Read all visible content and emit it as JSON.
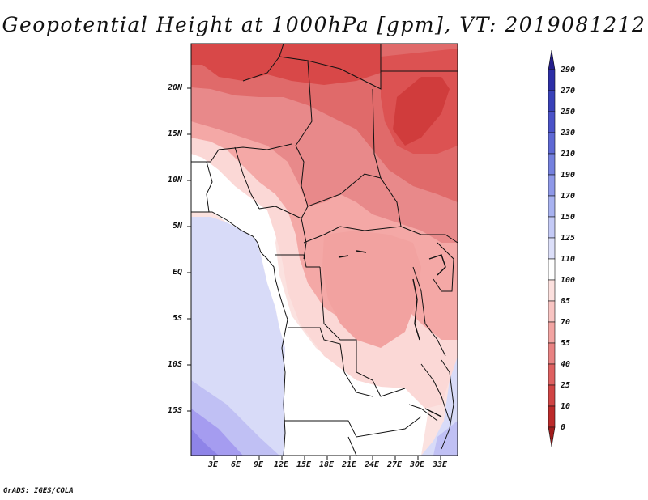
{
  "title": "Geopotential Height at 1000hPa [gpm], VT: 2019081212",
  "footer": "GrADS: IGES/COLA",
  "lat_ticks": [
    "20N",
    "15N",
    "10N",
    "5N",
    "EQ",
    "5S",
    "10S",
    "15S"
  ],
  "lon_ticks": [
    "3E",
    "6E",
    "9E",
    "12E",
    "15E",
    "18E",
    "21E",
    "24E",
    "27E",
    "30E",
    "33E"
  ],
  "colorbar": {
    "labels": [
      "290",
      "270",
      "250",
      "230",
      "210",
      "190",
      "170",
      "150",
      "125",
      "110",
      "100",
      "85",
      "70",
      "55",
      "40",
      "25",
      "10",
      "0"
    ],
    "colors": [
      "#241e8c",
      "#2c2ea6",
      "#3840b8",
      "#4a52c8",
      "#5e68d4",
      "#7480de",
      "#8e98e8",
      "#a8b2f0",
      "#c4caf6",
      "#dcdff9",
      "#ffffff",
      "#fce0de",
      "#f8c4c2",
      "#f2a4a2",
      "#e88282",
      "#de6060",
      "#d04444",
      "#bc2a2a",
      "#a01c1c"
    ]
  },
  "legend_colors": {
    "sea": "#d8dbf8",
    "deep_sea": "#8e84e8",
    "land_high": "#e05858"
  }
}
